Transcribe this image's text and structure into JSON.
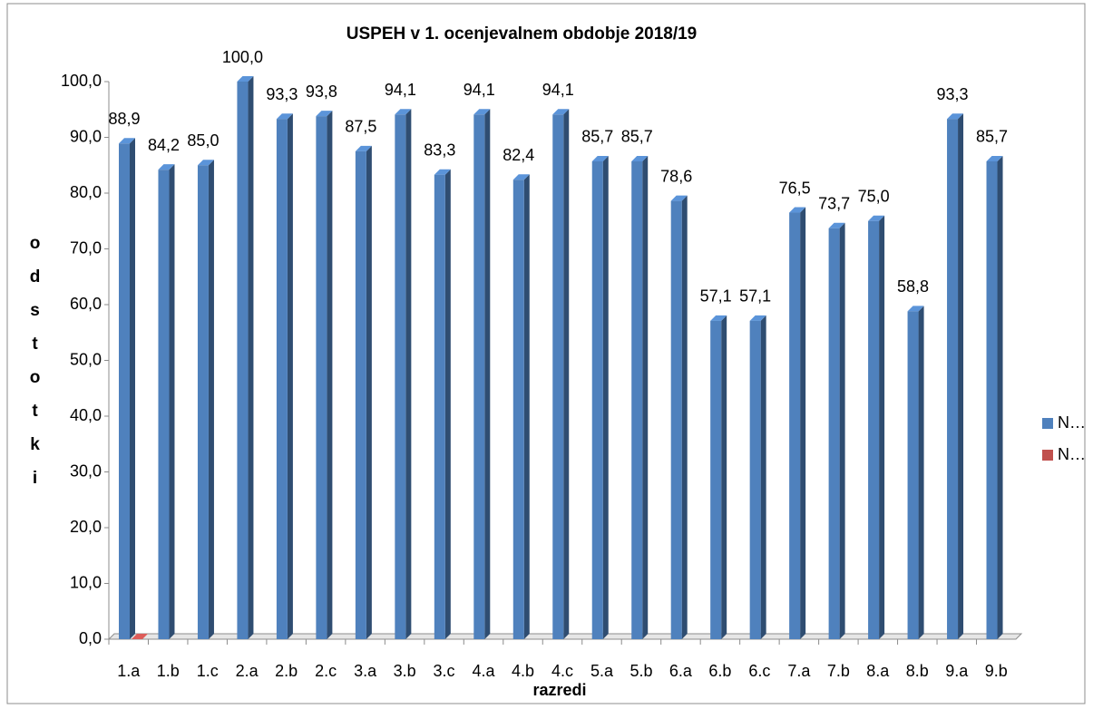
{
  "chart_data": {
    "type": "bar3d",
    "title": "USPEH v 1. ocenjevalnem obdobje 2018/19",
    "xlabel": "razredi",
    "ylabel": "odstotki",
    "categories": [
      "1.a",
      "1.b",
      "1.c",
      "2.a",
      "2.b",
      "2.c",
      "3.a",
      "3.b",
      "3.c",
      "4.a",
      "4.b",
      "4.c",
      "5.a",
      "5.b",
      "6.a",
      "6.b",
      "6.c",
      "7.a",
      "7.b",
      "8.a",
      "8.b",
      "9.a",
      "9.b"
    ],
    "series": [
      {
        "name": "N…",
        "color": "#4f81bd",
        "values": [
          88.9,
          84.2,
          85.0,
          100.0,
          93.3,
          93.8,
          87.5,
          94.1,
          83.3,
          94.1,
          82.4,
          94.1,
          85.7,
          85.7,
          78.6,
          57.1,
          57.1,
          76.5,
          73.7,
          75.0,
          58.8,
          93.3,
          85.7
        ],
        "value_labels": [
          "88,9",
          "84,2",
          "85,0",
          "100,0",
          "93,3",
          "93,8",
          "87,5",
          "94,1",
          "83,3",
          "94,1",
          "82,4",
          "94,1",
          "85,7",
          "85,7",
          "78,6",
          "57,1",
          "57,1",
          "76,5",
          "73,7",
          "75,0",
          "58,8",
          "93,3",
          "85,7"
        ]
      },
      {
        "name": "N…",
        "color": "#c0504d",
        "values": [
          0,
          null,
          null,
          null,
          null,
          null,
          null,
          null,
          null,
          null,
          null,
          null,
          null,
          null,
          null,
          null,
          null,
          null,
          null,
          null,
          null,
          null,
          null
        ]
      }
    ],
    "ylim": [
      0,
      100
    ],
    "yticks": [
      {
        "value": 0,
        "label": "0,0"
      },
      {
        "value": 10,
        "label": "10,0"
      },
      {
        "value": 20,
        "label": "20,0"
      },
      {
        "value": 30,
        "label": "30,0"
      },
      {
        "value": 40,
        "label": "40,0"
      },
      {
        "value": 50,
        "label": "50,0"
      },
      {
        "value": 60,
        "label": "60,0"
      },
      {
        "value": 70,
        "label": "70,0"
      },
      {
        "value": 80,
        "label": "80,0"
      },
      {
        "value": 90,
        "label": "90,0"
      },
      {
        "value": 100,
        "label": "100,0"
      }
    ],
    "legend": "right"
  }
}
